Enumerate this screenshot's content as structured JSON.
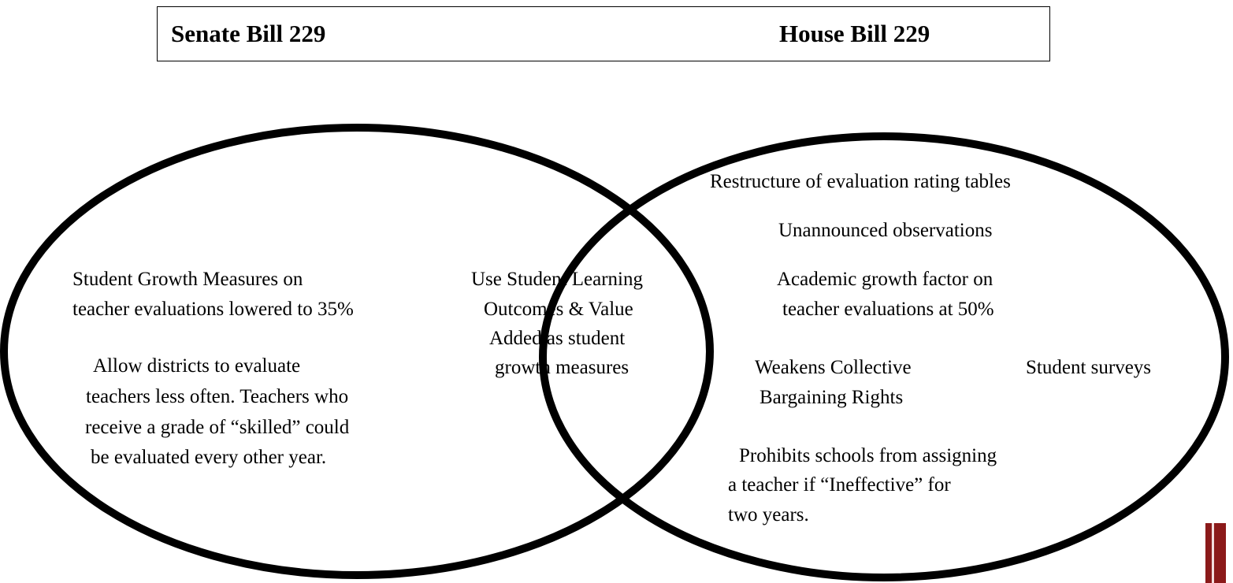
{
  "header": {
    "left_title": "Senate Bill 229",
    "right_title": "House Bill 229"
  },
  "left": {
    "item1_line1": "Student Growth Measures on",
    "item1_line2": "teacher evaluations lowered to 35%",
    "item2_line1": "Allow districts to evaluate",
    "item2_line2": "teachers less often. Teachers who",
    "item2_line3": "receive a grade of “skilled” could",
    "item2_line4": "be evaluated every other year."
  },
  "overlap": {
    "line1": "Use Student Learning",
    "line2": "Outcomes & Value",
    "line3": "Added as student",
    "line4": "growth measures"
  },
  "right": {
    "item1": "Restructure of evaluation rating tables",
    "item2": "Unannounced observations",
    "item3_line1": "Academic growth factor on",
    "item3_line2": "teacher evaluations at 50%",
    "item4_line1": "Weakens Collective",
    "item4_line2": "Bargaining Rights",
    "item5": "Student surveys",
    "item6_line1": "Prohibits schools from assigning",
    "item6_line2": "a teacher if “Ineffective” for",
    "item6_line3": "two years."
  },
  "colors": {
    "outline": "#000000",
    "accent_bar": "#8b1a1a"
  }
}
